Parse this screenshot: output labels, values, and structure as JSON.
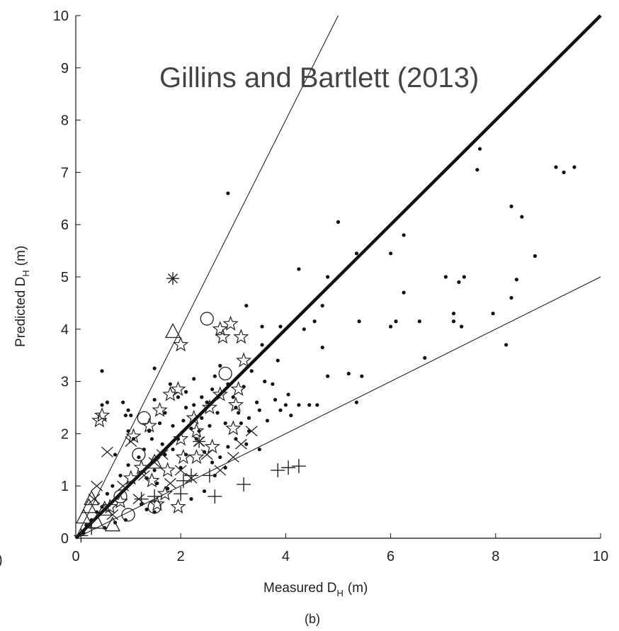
{
  "chart_data": {
    "type": "scatter",
    "title": "Gillins and Bartlett (2013)",
    "xlabel": "Measured D",
    "xlabel_sub": "H",
    "xlabel_unit": "(m)",
    "ylabel": "Predicted D",
    "ylabel_sub": "H",
    "ylabel_unit": "(m)",
    "caption": "(b)",
    "stray_label": ")",
    "xlim": [
      0,
      10
    ],
    "ylim": [
      0,
      10
    ],
    "x_ticks": [
      "0",
      "2",
      "4",
      "6",
      "8",
      "10"
    ],
    "y_ticks": [
      "0",
      "1",
      "2",
      "3",
      "4",
      "5",
      "6",
      "7",
      "8",
      "9",
      "10"
    ],
    "grid": false,
    "reference_lines": [
      {
        "name": "1:1",
        "slope": 1,
        "style": "thick"
      },
      {
        "name": "2:1",
        "slope": 2,
        "style": "thin"
      },
      {
        "name": "1:2",
        "slope": 0.5,
        "style": "thin"
      }
    ],
    "series": [
      {
        "marker": "dot",
        "points": [
          [
            2.9,
            6.6
          ],
          [
            5.0,
            6.05
          ],
          [
            5.35,
            5.45
          ],
          [
            6.25,
            5.8
          ],
          [
            6.0,
            5.45
          ],
          [
            7.7,
            7.45
          ],
          [
            7.65,
            7.05
          ],
          [
            9.15,
            7.1
          ],
          [
            9.3,
            7.0
          ],
          [
            9.5,
            7.1
          ],
          [
            8.3,
            6.35
          ],
          [
            8.5,
            6.15
          ],
          [
            8.75,
            5.4
          ],
          [
            8.4,
            4.95
          ],
          [
            8.3,
            4.6
          ],
          [
            7.95,
            4.3
          ],
          [
            8.2,
            3.7
          ],
          [
            4.25,
            5.15
          ],
          [
            4.8,
            5.0
          ],
          [
            4.7,
            4.45
          ],
          [
            4.55,
            4.15
          ],
          [
            4.35,
            4.0
          ],
          [
            4.7,
            3.65
          ],
          [
            5.4,
            4.15
          ],
          [
            6.0,
            4.05
          ],
          [
            6.25,
            4.7
          ],
          [
            6.55,
            4.15
          ],
          [
            6.1,
            4.15
          ],
          [
            7.05,
            5.0
          ],
          [
            7.3,
            4.9
          ],
          [
            7.4,
            5.0
          ],
          [
            7.2,
            4.3
          ],
          [
            7.2,
            4.15
          ],
          [
            7.35,
            4.05
          ],
          [
            6.65,
            3.45
          ],
          [
            4.8,
            3.1
          ],
          [
            5.2,
            3.15
          ],
          [
            5.45,
            3.1
          ],
          [
            5.35,
            2.6
          ],
          [
            4.6,
            2.55
          ],
          [
            4.45,
            2.55
          ],
          [
            4.25,
            2.55
          ],
          [
            4.05,
            2.75
          ],
          [
            3.55,
            3.7
          ],
          [
            3.25,
            4.45
          ],
          [
            3.55,
            4.05
          ],
          [
            3.9,
            4.05
          ],
          [
            3.85,
            3.4
          ],
          [
            3.6,
            3.0
          ],
          [
            3.45,
            2.6
          ],
          [
            3.3,
            2.3
          ],
          [
            3.15,
            2.2
          ],
          [
            3.05,
            2.5
          ],
          [
            3.2,
            2.9
          ],
          [
            3.35,
            3.2
          ],
          [
            3.75,
            2.95
          ],
          [
            3.9,
            2.45
          ],
          [
            3.0,
            2.7
          ],
          [
            2.9,
            2.95
          ],
          [
            2.75,
            3.3
          ],
          [
            2.6,
            2.85
          ],
          [
            2.5,
            2.6
          ],
          [
            2.4,
            2.3
          ],
          [
            2.3,
            1.9
          ],
          [
            2.2,
            2.1
          ],
          [
            2.1,
            2.5
          ],
          [
            1.95,
            2.7
          ],
          [
            1.8,
            2.95
          ],
          [
            1.7,
            2.4
          ],
          [
            1.6,
            2.2
          ],
          [
            1.5,
            2.65
          ],
          [
            1.5,
            3.25
          ],
          [
            1.45,
            1.9
          ],
          [
            1.4,
            2.05
          ],
          [
            1.3,
            1.7
          ],
          [
            1.2,
            1.55
          ],
          [
            1.1,
            1.9
          ],
          [
            1.0,
            2.05
          ],
          [
            0.95,
            2.35
          ],
          [
            0.9,
            2.6
          ],
          [
            1.0,
            1.4
          ],
          [
            0.85,
            1.2
          ],
          [
            0.75,
            1.6
          ],
          [
            0.7,
            1.0
          ],
          [
            0.6,
            0.85
          ],
          [
            0.5,
            0.6
          ],
          [
            0.4,
            0.5
          ],
          [
            0.3,
            0.35
          ],
          [
            0.2,
            0.25
          ],
          [
            0.15,
            0.1
          ],
          [
            0.5,
            3.2
          ],
          [
            0.5,
            2.55
          ],
          [
            0.6,
            2.6
          ],
          [
            1.0,
            2.45
          ],
          [
            1.05,
            2.35
          ],
          [
            2.85,
            1.35
          ],
          [
            2.65,
            1.2
          ],
          [
            3.5,
            1.7
          ],
          [
            2.2,
            0.75
          ],
          [
            2.45,
            0.9
          ],
          [
            1.5,
            1.3
          ],
          [
            1.7,
            1.6
          ],
          [
            1.85,
            1.7
          ],
          [
            2.0,
            1.35
          ],
          [
            2.1,
            1.6
          ],
          [
            2.45,
            1.65
          ],
          [
            2.6,
            1.45
          ],
          [
            2.75,
            1.55
          ],
          [
            2.9,
            1.75
          ],
          [
            3.05,
            1.9
          ],
          [
            3.25,
            1.8
          ],
          [
            3.3,
            2.05
          ],
          [
            1.25,
            0.65
          ],
          [
            1.35,
            0.55
          ],
          [
            1.5,
            0.5
          ],
          [
            0.95,
            0.35
          ],
          [
            0.75,
            0.3
          ],
          [
            0.55,
            0.2
          ],
          [
            1.35,
            1.15
          ],
          [
            1.55,
            1.05
          ],
          [
            1.75,
            0.95
          ],
          [
            1.65,
            1.8
          ],
          [
            1.85,
            2.15
          ],
          [
            1.95,
            1.9
          ],
          [
            2.05,
            2.25
          ],
          [
            2.25,
            2.55
          ],
          [
            2.4,
            2.7
          ],
          [
            2.55,
            2.15
          ],
          [
            2.7,
            2.4
          ],
          [
            2.85,
            2.2
          ],
          [
            3.1,
            2.4
          ],
          [
            3.5,
            2.45
          ],
          [
            3.65,
            2.25
          ],
          [
            3.8,
            2.65
          ],
          [
            4.0,
            2.55
          ],
          [
            4.1,
            2.35
          ],
          [
            2.1,
            2.8
          ],
          [
            2.25,
            3.05
          ],
          [
            2.65,
            3.1
          ],
          [
            2.35,
            2.05
          ]
        ]
      },
      {
        "marker": "star",
        "points": [
          [
            2.95,
            4.1
          ],
          [
            2.75,
            4.0
          ],
          [
            3.15,
            3.85
          ],
          [
            2.8,
            3.85
          ],
          [
            2.0,
            3.7
          ],
          [
            3.2,
            3.4
          ],
          [
            0.5,
            2.35
          ],
          [
            0.45,
            2.25
          ],
          [
            3.1,
            2.85
          ],
          [
            2.75,
            2.75
          ],
          [
            3.05,
            2.55
          ],
          [
            2.55,
            2.5
          ],
          [
            2.25,
            2.3
          ],
          [
            1.95,
            2.85
          ],
          [
            1.8,
            2.75
          ],
          [
            1.6,
            2.45
          ],
          [
            1.4,
            2.15
          ],
          [
            1.1,
            1.95
          ],
          [
            2.0,
            1.9
          ],
          [
            2.3,
            2.05
          ],
          [
            2.6,
            1.75
          ],
          [
            2.3,
            1.55
          ],
          [
            2.05,
            1.55
          ],
          [
            1.75,
            1.3
          ],
          [
            1.45,
            1.1
          ],
          [
            1.25,
            1.35
          ],
          [
            1.05,
            1.15
          ],
          [
            1.7,
            0.85
          ],
          [
            1.95,
            0.6
          ],
          [
            0.85,
            0.7
          ],
          [
            0.65,
            0.6
          ],
          [
            1.55,
            0.65
          ],
          [
            3.0,
            2.1
          ]
        ]
      },
      {
        "marker": "x",
        "points": [
          [
            0.6,
            1.65
          ],
          [
            1.05,
            1.85
          ],
          [
            0.4,
            1.0
          ],
          [
            0.35,
            0.75
          ],
          [
            2.35,
            1.85
          ],
          [
            3.15,
            1.8
          ],
          [
            2.5,
            1.6
          ],
          [
            2.75,
            1.3
          ],
          [
            3.35,
            2.05
          ],
          [
            3.0,
            1.55
          ],
          [
            1.3,
            1.2
          ],
          [
            1.5,
            1.45
          ],
          [
            2.0,
            1.3
          ],
          [
            1.8,
            1.05
          ],
          [
            1.2,
            0.75
          ],
          [
            0.7,
            0.45
          ],
          [
            0.9,
            1.0
          ],
          [
            1.65,
            1.6
          ],
          [
            2.2,
            1.15
          ]
        ]
      },
      {
        "marker": "circle",
        "points": [
          [
            2.5,
            4.2
          ],
          [
            2.85,
            3.15
          ],
          [
            1.3,
            2.3
          ],
          [
            1.5,
            0.6
          ],
          [
            1.0,
            0.45
          ],
          [
            1.2,
            1.6
          ],
          [
            0.85,
            0.8
          ]
        ]
      },
      {
        "marker": "triangle",
        "points": [
          [
            1.85,
            3.95
          ],
          [
            0.3,
            0.75
          ],
          [
            0.25,
            0.6
          ],
          [
            0.55,
            0.55
          ],
          [
            0.15,
            0.4
          ],
          [
            0.4,
            0.3
          ],
          [
            0.7,
            0.25
          ],
          [
            1.5,
            1.45
          ]
        ]
      },
      {
        "marker": "plus",
        "points": [
          [
            2.05,
            1.1
          ],
          [
            2.2,
            1.2
          ],
          [
            2.55,
            1.2
          ],
          [
            2.65,
            0.8
          ],
          [
            2.0,
            0.85
          ],
          [
            1.5,
            0.8
          ],
          [
            1.25,
            0.75
          ],
          [
            3.2,
            1.03
          ],
          [
            3.85,
            1.3
          ],
          [
            4.05,
            1.35
          ],
          [
            4.25,
            1.38
          ],
          [
            0.3,
            0.2
          ],
          [
            0.1,
            0.05
          ]
        ]
      },
      {
        "marker": "asterisk",
        "points": [
          [
            1.85,
            4.97
          ],
          [
            2.35,
            1.85
          ]
        ]
      }
    ]
  }
}
